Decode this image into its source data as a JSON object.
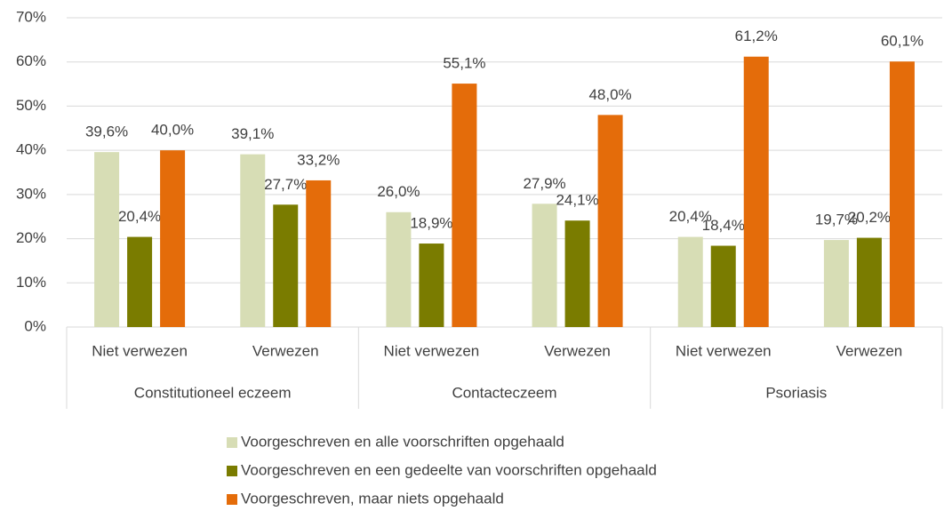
{
  "chart_data": {
    "type": "bar",
    "categories": [
      "Niet verwezen",
      "Verwezen",
      "Niet verwezen",
      "Verwezen",
      "Niet verwezen",
      "Verwezen"
    ],
    "groups": [
      "Constitutioneel eczeem",
      "Contacteczeem",
      "Psoriasis"
    ],
    "series": [
      {
        "name": "Voorgeschreven en alle voorschriften opgehaald",
        "color": "#d7ddb5",
        "values": [
          39.6,
          39.1,
          26.0,
          27.9,
          20.4,
          19.7
        ],
        "value_labels": [
          "39,6%",
          "39,1%",
          "26,0%",
          "27,9%",
          "20,4%",
          "19,7%"
        ]
      },
      {
        "name": "Voorgeschreven en een gedeelte van voorschriften opgehaald",
        "color": "#7a7c00",
        "values": [
          20.4,
          27.7,
          18.9,
          24.1,
          18.4,
          20.2
        ],
        "value_labels": [
          "20,4%",
          "27,7%",
          "18,9%",
          "24,1%",
          "18,4%",
          "20,2%"
        ]
      },
      {
        "name": "Voorgeschreven, maar niets opgehaald",
        "color": "#e46c0a",
        "values": [
          40.0,
          33.2,
          55.1,
          48.0,
          61.2,
          60.1
        ],
        "value_labels": [
          "40,0%",
          "33,2%",
          "55,1%",
          "48,0%",
          "61,2%",
          "60,1%"
        ]
      }
    ],
    "ylim": [
      0,
      70
    ],
    "yticks": [
      {
        "value": 0,
        "label": "0%"
      },
      {
        "value": 10,
        "label": "10%"
      },
      {
        "value": 20,
        "label": "20%"
      },
      {
        "value": 30,
        "label": "30%"
      },
      {
        "value": 40,
        "label": "40%"
      },
      {
        "value": 50,
        "label": "50%"
      },
      {
        "value": 60,
        "label": "60%"
      },
      {
        "value": 70,
        "label": "70%"
      }
    ],
    "grid": true,
    "legend": "bottom"
  }
}
